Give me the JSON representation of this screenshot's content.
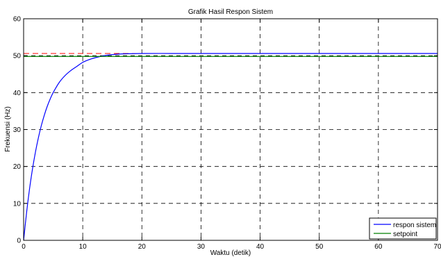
{
  "chart_data": {
    "type": "line",
    "title": "Grafik Hasil Respon Sistem",
    "xlabel": "Waktu (detik)",
    "ylabel": "Frekuensi (Hz)",
    "xlim": [
      0,
      70
    ],
    "ylim": [
      0,
      60
    ],
    "xticks": [
      "0",
      "10",
      "20",
      "30",
      "40",
      "50",
      "60",
      "70"
    ],
    "yticks": [
      "0",
      "10",
      "20",
      "30",
      "40",
      "50",
      "60"
    ],
    "grid": true,
    "grid_style": "dashed",
    "legend_position": "bottom-right",
    "series": [
      {
        "name": "respon sistem",
        "color": "#0000ff",
        "x": [
          0,
          0.5,
          1,
          1.5,
          2,
          2.5,
          3,
          3.5,
          4,
          4.5,
          5,
          6,
          7,
          8,
          9,
          10,
          11,
          12,
          13,
          14,
          15,
          17,
          20,
          25,
          30,
          40,
          50,
          60,
          70
        ],
        "y": [
          0,
          7.5,
          13.9,
          19.3,
          23.9,
          27.8,
          31.1,
          33.9,
          36.3,
          38.3,
          40.0,
          42.7,
          44.6,
          46.0,
          47.1,
          48.2,
          48.9,
          49.4,
          49.8,
          50.1,
          50.3,
          50.5,
          50.6,
          50.6,
          50.6,
          50.6,
          50.6,
          50.6,
          50.6
        ]
      },
      {
        "name": "setpoint",
        "color": "#008000",
        "x": [
          0,
          70
        ],
        "y": [
          49.8,
          49.8
        ]
      }
    ],
    "annotations": [
      {
        "type": "reference-line",
        "style": "dashed",
        "color": "#ff0000",
        "x": [
          0,
          70
        ],
        "y": [
          50.6,
          50.6
        ]
      }
    ]
  }
}
